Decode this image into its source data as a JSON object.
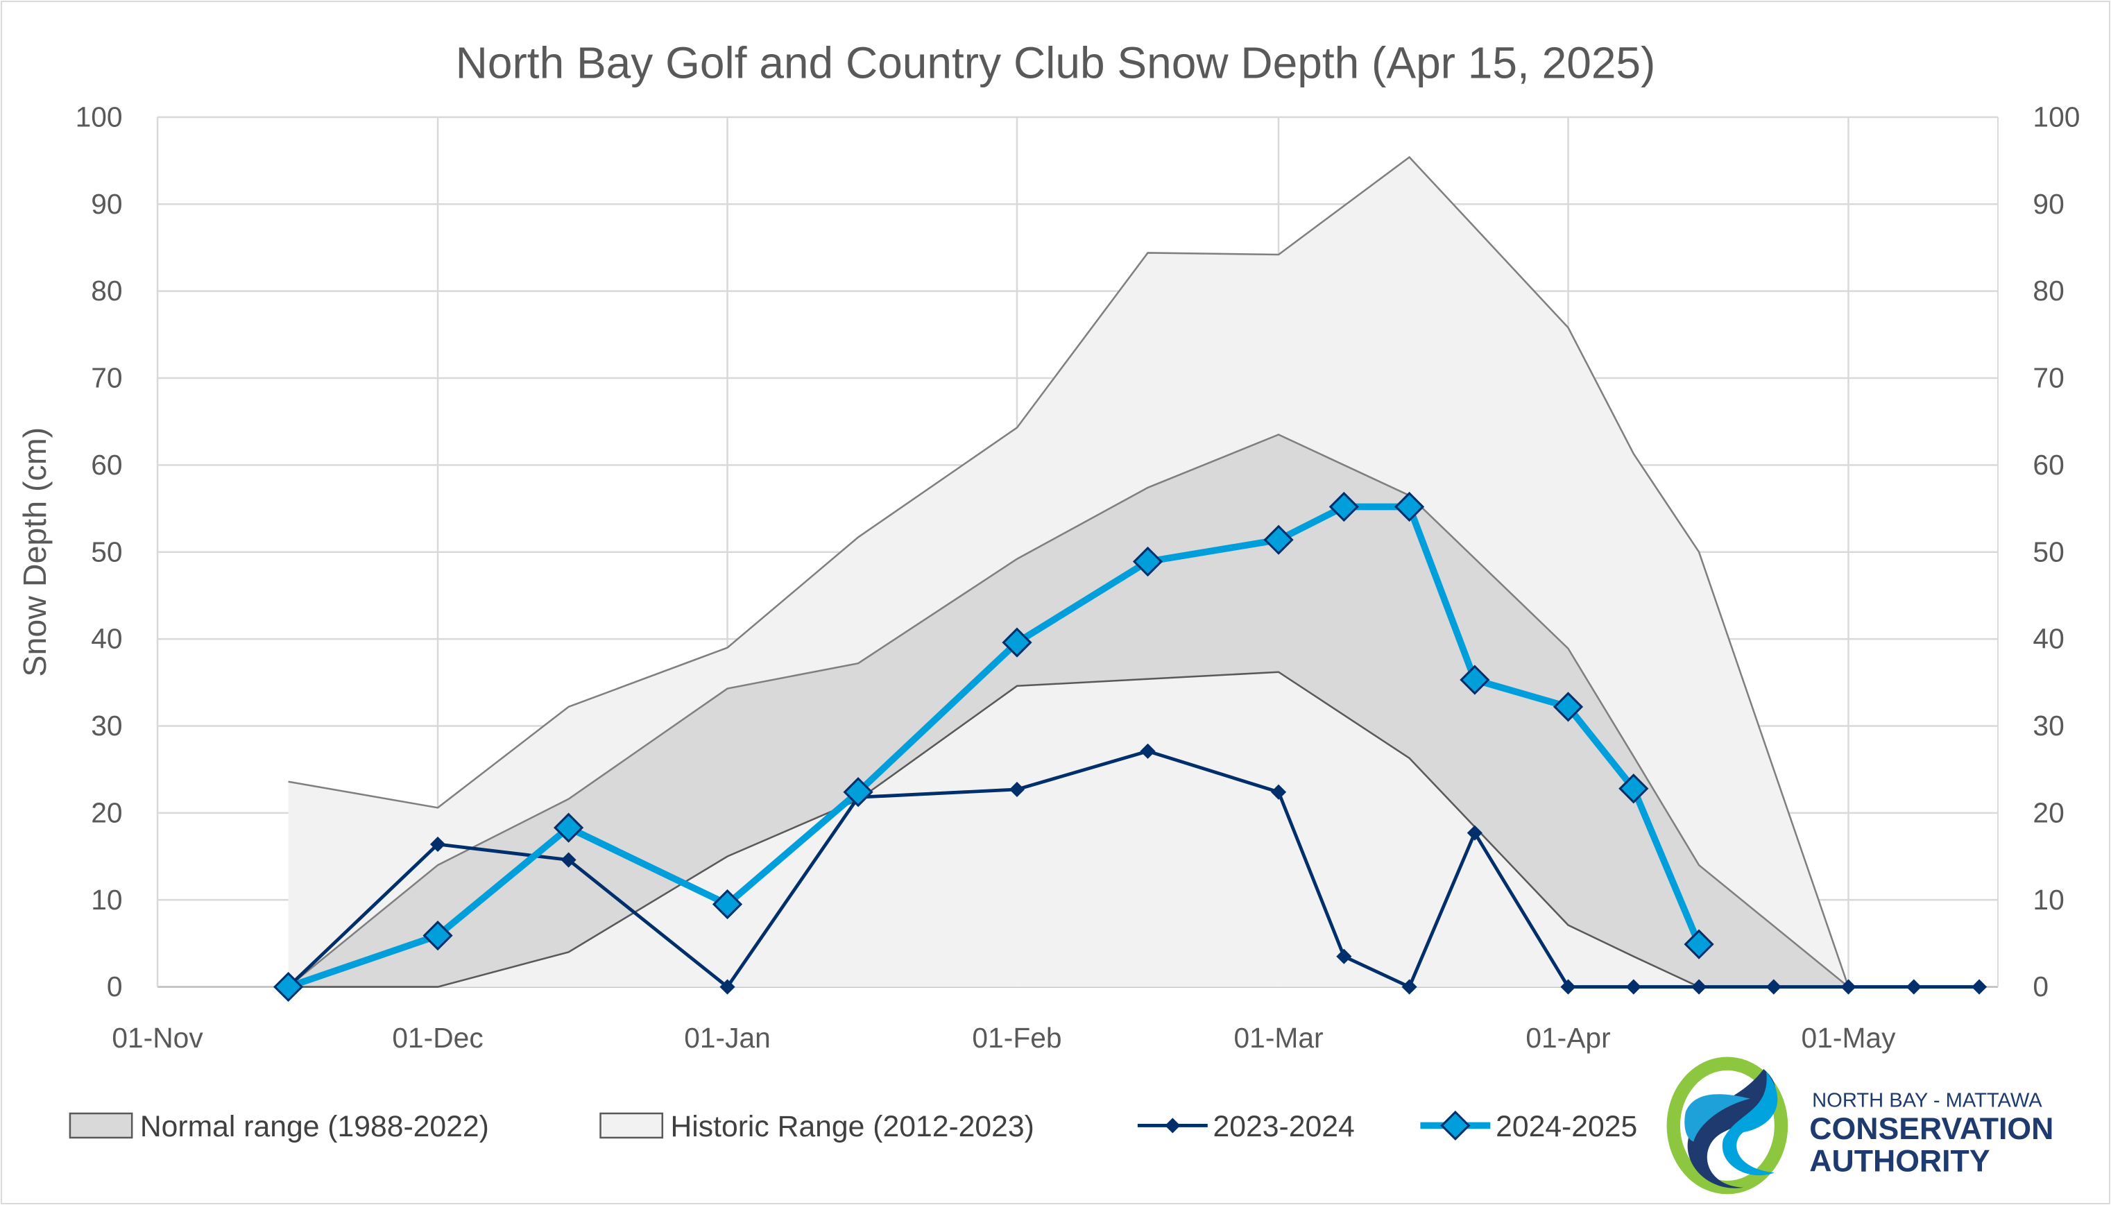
{
  "chart_data": {
    "type": "line",
    "title": "North Bay Golf and Country Club Snow Depth (Apr 15, 2025)",
    "ylabel": "Snow Depth (cm)",
    "xlabel": "",
    "ylim": [
      0,
      100
    ],
    "yticks": [
      0,
      10,
      20,
      30,
      40,
      50,
      60,
      70,
      80,
      90,
      100
    ],
    "xlim": [
      "2024-11-01",
      "2025-05-17"
    ],
    "xticks": [
      {
        "date": "2024-11-01",
        "label": "01-Nov"
      },
      {
        "date": "2024-12-01",
        "label": "01-Dec"
      },
      {
        "date": "2025-01-01",
        "label": "01-Jan"
      },
      {
        "date": "2025-02-01",
        "label": "01-Feb"
      },
      {
        "date": "2025-03-01",
        "label": "01-Mar"
      },
      {
        "date": "2025-04-01",
        "label": "01-Apr"
      },
      {
        "date": "2025-05-01",
        "label": "01-May"
      }
    ],
    "grid": true,
    "secondary_y_axis": true,
    "legend_position": "bottom",
    "areas": [
      {
        "name": "Historic Range (2012-2023)",
        "color": "#f2f2f2",
        "x": [
          "2024-11-15",
          "2024-12-01",
          "2024-12-15",
          "2025-01-01",
          "2025-01-15",
          "2025-02-01",
          "2025-02-15",
          "2025-03-01",
          "2025-03-15",
          "2025-04-01",
          "2025-04-08",
          "2025-04-15",
          "2025-05-01"
        ],
        "low": [
          0,
          0,
          0,
          0,
          0,
          0,
          0,
          0,
          0,
          0,
          0,
          0,
          0
        ],
        "high": [
          23.6,
          20.6,
          32.2,
          39,
          51.7,
          64.3,
          84.4,
          84.2,
          95.4,
          75.8,
          61.3,
          50,
          0
        ]
      },
      {
        "name": "Normal range (1988-2022)",
        "color": "#d9d9d9",
        "x": [
          "2024-11-15",
          "2024-12-01",
          "2024-12-15",
          "2025-01-01",
          "2025-01-15",
          "2025-02-01",
          "2025-02-15",
          "2025-03-01",
          "2025-03-15",
          "2025-04-01",
          "2025-04-08",
          "2025-04-15",
          "2025-05-01"
        ],
        "low": [
          0,
          0,
          4,
          15,
          21.5,
          34.6,
          35.4,
          36.2,
          26.3,
          7.1,
          3.5,
          0,
          0
        ],
        "high": [
          0,
          14,
          21.6,
          34.3,
          37.2,
          49.2,
          57.4,
          63.5,
          56.5,
          38.9,
          26.5,
          14,
          0
        ]
      }
    ],
    "series": [
      {
        "name": "2023-2024",
        "color": "#002f6c",
        "x": [
          "2024-11-15",
          "2024-12-01",
          "2024-12-15",
          "2025-01-01",
          "2025-01-15",
          "2025-02-01",
          "2025-02-15",
          "2025-03-01",
          "2025-03-08",
          "2025-03-15",
          "2025-03-22",
          "2025-04-01",
          "2025-04-08",
          "2025-04-15",
          "2025-04-23",
          "2025-05-01",
          "2025-05-08",
          "2025-05-15"
        ],
        "values": [
          0,
          16.4,
          14.6,
          0,
          21.8,
          22.7,
          27.1,
          22.4,
          3.5,
          0,
          17.7,
          0,
          0,
          0,
          0,
          0,
          0,
          0
        ]
      },
      {
        "name": "2024-2025",
        "color": "#009fdb",
        "x": [
          "2024-11-15",
          "2024-12-01",
          "2024-12-15",
          "2025-01-01",
          "2025-01-15",
          "2025-02-01",
          "2025-02-15",
          "2025-03-01",
          "2025-03-08",
          "2025-03-15",
          "2025-03-22",
          "2025-04-01",
          "2025-04-08",
          "2025-04-15"
        ],
        "values": [
          0,
          5.9,
          18.3,
          9.5,
          22.4,
          39.6,
          48.9,
          51.4,
          55.2,
          55.2,
          35.3,
          32.2,
          22.8,
          4.9
        ]
      }
    ]
  },
  "logo": {
    "line1": "NORTH BAY - MATTAWA",
    "line2": "CONSERVATION",
    "line3": "AUTHORITY"
  }
}
